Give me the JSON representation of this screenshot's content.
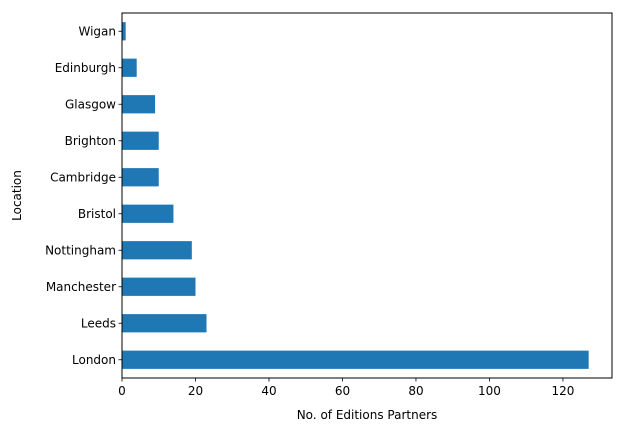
{
  "chart_data": {
    "type": "bar",
    "orientation": "horizontal",
    "categories": [
      "London",
      "Leeds",
      "Manchester",
      "Nottingham",
      "Bristol",
      "Cambridge",
      "Brighton",
      "Glasgow",
      "Edinburgh",
      "Wigan"
    ],
    "values": [
      127,
      23,
      20,
      19,
      14,
      10,
      10,
      9,
      4,
      1
    ],
    "xlabel": "No. of Editions Partners",
    "ylabel": "Location",
    "xlim": [
      0,
      133.35
    ],
    "xticks": [
      0,
      20,
      40,
      60,
      80,
      100,
      120
    ],
    "grid": false,
    "legend": "none",
    "bar_color": "#1f77b4"
  }
}
